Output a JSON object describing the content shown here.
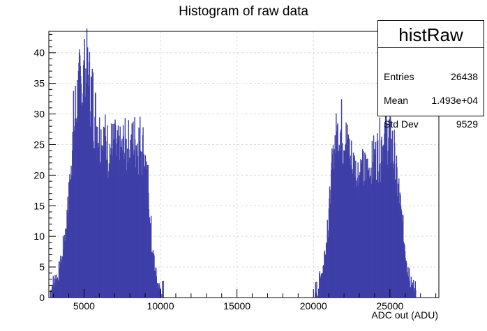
{
  "chart_data": {
    "type": "bar",
    "title": "Histogram of raw data",
    "xlabel": "ADC out (ADU)",
    "ylabel": "",
    "xlim": [
      2700,
      28200
    ],
    "ylim": [
      0,
      43.5
    ],
    "xticks": [
      5000,
      10000,
      15000,
      20000,
      25000
    ],
    "yticks": [
      0,
      5,
      10,
      15,
      20,
      25,
      30,
      35,
      40
    ],
    "grid": true,
    "bar_color": "#3F3FA8",
    "bin_width": 100,
    "series": [
      {
        "values_by_bin": {
          "start": 2700,
          "step": 100,
          "counts": [
            0,
            1,
            2,
            2,
            3,
            3,
            4,
            5,
            6,
            8,
            10,
            12,
            14,
            18,
            22,
            25,
            28,
            30,
            32,
            33,
            34,
            34,
            35,
            35,
            36,
            35,
            34,
            33,
            32,
            30,
            29,
            28,
            27,
            26,
            26,
            25,
            25,
            24,
            24,
            24,
            24,
            24,
            24,
            24,
            23,
            23,
            23,
            23,
            24,
            24,
            24,
            24,
            24,
            24,
            24,
            25,
            25,
            25,
            25,
            25,
            25,
            24,
            23,
            21,
            18,
            15,
            11,
            8,
            6,
            4,
            3,
            2,
            1,
            1,
            1,
            0,
            0,
            0,
            0,
            0,
            0,
            0,
            0,
            0,
            0,
            0,
            0,
            0,
            0,
            0,
            0,
            0,
            0,
            0,
            0,
            0,
            0,
            0,
            0,
            0,
            0,
            0,
            0,
            0,
            0,
            0,
            0,
            0,
            0,
            0,
            0,
            0,
            0,
            0,
            0,
            0,
            0,
            0,
            0,
            0,
            0,
            0,
            0,
            0,
            0,
            0,
            0,
            0,
            0,
            0,
            0,
            0,
            0,
            0,
            0,
            0,
            0,
            0,
            0,
            0,
            0,
            0,
            0,
            0,
            0,
            0,
            0,
            0,
            0,
            0,
            0,
            0,
            0,
            0,
            0,
            0,
            0,
            0,
            0,
            0,
            0,
            0,
            0,
            0,
            0,
            0,
            0,
            0,
            0,
            0,
            0,
            0,
            0,
            0,
            1,
            1,
            2,
            3,
            4,
            5,
            7,
            9,
            12,
            15,
            18,
            21,
            23,
            25,
            26,
            27,
            27,
            27,
            26,
            26,
            25,
            24,
            23,
            22,
            21,
            21,
            20,
            20,
            20,
            20,
            20,
            20,
            20,
            20,
            20,
            20,
            21,
            21,
            22,
            22,
            23,
            24,
            24,
            25,
            25,
            26,
            26,
            26,
            26,
            25,
            24,
            23,
            21,
            19,
            17,
            15,
            13,
            11,
            9,
            7,
            5,
            4,
            3,
            2,
            1,
            1,
            0,
            0,
            0,
            0,
            0,
            0
          ],
          "noise_seed": 7
        }
      }
    ]
  },
  "stats": {
    "title": "histRaw",
    "rows": [
      {
        "key": "Entries",
        "value": "26438"
      },
      {
        "key": "Mean",
        "value": "1.493e+04"
      },
      {
        "key": "Std Dev",
        "value": "9529"
      }
    ]
  }
}
